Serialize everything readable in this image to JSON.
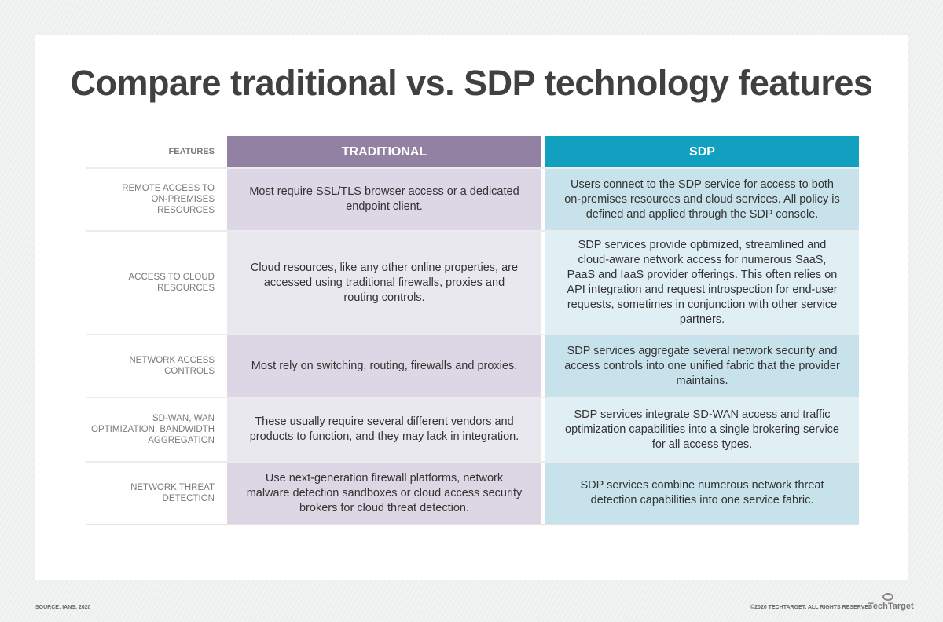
{
  "title": "Compare traditional vs. SDP technology features",
  "headers": {
    "features": "FEATURES",
    "traditional": "TRADITIONAL",
    "sdp": "SDP"
  },
  "rows": [
    {
      "feature": "Remote access to on-premises resources",
      "traditional": "Most require SSL/TLS browser access or a dedicated endpoint client.",
      "sdp": "Users connect to the SDP service for access to both on-premises resources and cloud services. All policy is defined and applied through the SDP console."
    },
    {
      "feature": "Access to cloud resources",
      "traditional": "Cloud resources, like any other online properties, are accessed using traditional firewalls, proxies and routing controls.",
      "sdp": "SDP services provide optimized, streamlined and cloud-aware network access for numerous SaaS, PaaS and IaaS provider offerings. This often relies on API integration and request introspection for end-user requests, sometimes in conjunction with other service partners."
    },
    {
      "feature": "Network access controls",
      "traditional": "Most rely on switching, routing, firewalls and proxies.",
      "sdp": "SDP services aggregate several network security and access controls into one unified fabric that the provider maintains."
    },
    {
      "feature": "SD-WAN, WAN optimization, bandwidth aggregation",
      "traditional": "These usually require several different vendors and products to function, and they may lack in integration.",
      "sdp": "SDP services integrate SD-WAN access and traffic optimization capabilities into a single brokering service for all access types."
    },
    {
      "feature": "Network threat detection",
      "traditional": "Use next-generation firewall platforms, network malware detection sandboxes or cloud access security brokers for cloud threat detection.",
      "sdp": "SDP services combine numerous network threat detection capabilities into one service fabric."
    }
  ],
  "footer": {
    "source": "SOURCE: IANS, 2020",
    "copyright": "©2020 TECHTARGET. ALL RIGHTS RESERVED",
    "logo": "TechTarget"
  }
}
